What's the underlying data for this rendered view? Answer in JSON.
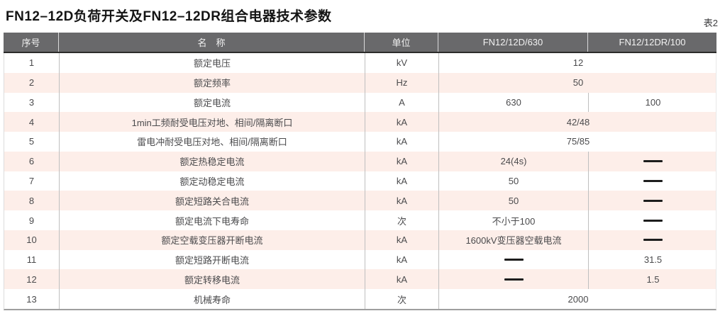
{
  "title": "FN12–12D负荷开关及FN12–12DR组合电器技术参数",
  "table_label": "表2",
  "colors": {
    "header_bg": "#69696b",
    "header_text": "#f2f2f2",
    "row_alt_bg": "#fdeee9",
    "body_text": "#4b4b4d",
    "dash_color": "#1d1d1d"
  },
  "columns": [
    "序号",
    "名　称",
    "单位",
    "FN12/12D/630",
    "FN12/12DR/100"
  ],
  "dash_symbol": "—",
  "rows": [
    {
      "num": "1",
      "name": "额定电压",
      "unit": "kV",
      "values": [
        "12"
      ]
    },
    {
      "num": "2",
      "name": "额定频率",
      "unit": "Hz",
      "values": [
        "50"
      ]
    },
    {
      "num": "3",
      "name": "额定电流",
      "unit": "A",
      "values": [
        "630",
        "100"
      ]
    },
    {
      "num": "4",
      "name": "1min工频耐受电压对地、相间/隔离断口",
      "unit": "kA",
      "values": [
        "42/48"
      ]
    },
    {
      "num": "5",
      "name": "雷电冲耐受电压对地、相间/隔离断口",
      "unit": "kA",
      "values": [
        "75/85"
      ]
    },
    {
      "num": "6",
      "name": "额定热稳定电流",
      "unit": "kA",
      "values": [
        "24(4s)",
        "—"
      ]
    },
    {
      "num": "7",
      "name": "额定动稳定电流",
      "unit": "kA",
      "values": [
        "50",
        "—"
      ]
    },
    {
      "num": "8",
      "name": "额定短路关合电流",
      "unit": "kA",
      "values": [
        "50",
        "—"
      ]
    },
    {
      "num": "9",
      "name": "额定电流下电寿命",
      "unit": "次",
      "values": [
        "不小于100",
        "—"
      ]
    },
    {
      "num": "10",
      "name": "额定空载变压器开断电流",
      "unit": "kA",
      "values": [
        "1600kV变压器空载电流",
        "—"
      ]
    },
    {
      "num": "11",
      "name": "额定短路开断电流",
      "unit": "kA",
      "values": [
        "—",
        "31.5"
      ]
    },
    {
      "num": "12",
      "name": "额定转移电流",
      "unit": "kA",
      "values": [
        "—",
        "1.5"
      ]
    },
    {
      "num": "13",
      "name": "机械寿命",
      "unit": "次",
      "values": [
        "2000"
      ]
    }
  ]
}
